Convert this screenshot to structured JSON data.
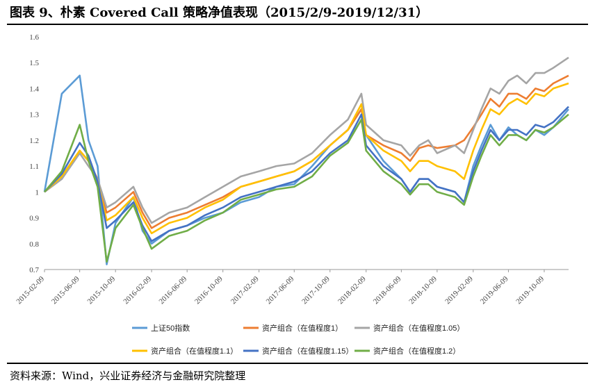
{
  "title": "图表 9、朴素 Covered Call 策略净值表现（2015/2/9-2019/12/31）",
  "source": "资料来源：Wind，兴业证券经济与金融研究院整理",
  "chart_data": {
    "type": "line",
    "ylim": [
      0.7,
      1.6
    ],
    "yticks": [
      "0.7",
      "0.8",
      "0.9",
      "1",
      "1.1",
      "1.2",
      "1.3",
      "1.4",
      "1.5",
      "1.6"
    ],
    "xticks": [
      "2015-02-09",
      "2015-06-09",
      "2015-10-09",
      "2016-02-09",
      "2016-06-09",
      "2016-10-09",
      "2017-02-09",
      "2017-06-09",
      "2017-10-09",
      "2018-02-09",
      "2018-06-09",
      "2018-10-09",
      "2019-02-09",
      "2019-06-09",
      "2019-10-09"
    ],
    "legend_position": "bottom",
    "grid": false,
    "x": [
      "2015-02-09",
      "2015-04-09",
      "2015-06-09",
      "2015-07-09",
      "2015-08-09",
      "2015-09-09",
      "2015-10-09",
      "2015-12-09",
      "2016-01-09",
      "2016-02-09",
      "2016-04-09",
      "2016-06-09",
      "2016-08-09",
      "2016-10-09",
      "2016-12-09",
      "2017-02-09",
      "2017-04-09",
      "2017-06-09",
      "2017-08-09",
      "2017-10-09",
      "2017-12-09",
      "2018-01-24",
      "2018-02-09",
      "2018-04-09",
      "2018-06-09",
      "2018-07-09",
      "2018-08-09",
      "2018-09-09",
      "2018-10-09",
      "2018-12-09",
      "2019-01-09",
      "2019-02-09",
      "2019-03-09",
      "2019-04-09",
      "2019-05-09",
      "2019-06-09",
      "2019-07-09",
      "2019-08-09",
      "2019-09-09",
      "2019-10-09",
      "2019-11-09",
      "2019-12-31"
    ],
    "series": [
      {
        "name": "上证50指数",
        "color": "#5b9bd5",
        "values": [
          1.0,
          1.38,
          1.45,
          1.2,
          1.1,
          0.72,
          0.88,
          0.98,
          0.85,
          0.8,
          0.85,
          0.87,
          0.9,
          0.92,
          0.96,
          0.98,
          1.02,
          1.03,
          1.1,
          1.18,
          1.24,
          1.32,
          1.22,
          1.12,
          1.05,
          1.0,
          1.05,
          1.05,
          1.02,
          1.0,
          0.96,
          1.1,
          1.18,
          1.26,
          1.2,
          1.25,
          1.22,
          1.2,
          1.24,
          1.22,
          1.25,
          1.32
        ]
      },
      {
        "name": "资产组合（在值程度1）",
        "color": "#ed7d31",
        "values": [
          1.0,
          1.06,
          1.16,
          1.12,
          1.05,
          0.92,
          0.94,
          1.0,
          0.92,
          0.86,
          0.9,
          0.92,
          0.95,
          0.98,
          1.02,
          1.04,
          1.06,
          1.08,
          1.12,
          1.18,
          1.24,
          1.32,
          1.22,
          1.18,
          1.15,
          1.12,
          1.17,
          1.18,
          1.17,
          1.18,
          1.2,
          1.25,
          1.3,
          1.36,
          1.33,
          1.38,
          1.38,
          1.36,
          1.4,
          1.39,
          1.42,
          1.45
        ]
      },
      {
        "name": "资产组合（在值程度1.05）",
        "color": "#a5a5a5",
        "values": [
          1.0,
          1.05,
          1.15,
          1.1,
          1.05,
          0.94,
          0.96,
          1.02,
          0.94,
          0.88,
          0.92,
          0.94,
          0.98,
          1.02,
          1.06,
          1.08,
          1.1,
          1.11,
          1.15,
          1.22,
          1.28,
          1.38,
          1.26,
          1.2,
          1.18,
          1.14,
          1.18,
          1.2,
          1.15,
          1.18,
          1.15,
          1.24,
          1.32,
          1.4,
          1.38,
          1.43,
          1.45,
          1.42,
          1.46,
          1.46,
          1.48,
          1.52
        ]
      },
      {
        "name": "资产组合（在值程度1.1）",
        "color": "#ffc000",
        "values": [
          1.0,
          1.06,
          1.16,
          1.12,
          1.04,
          0.89,
          0.91,
          0.98,
          0.9,
          0.84,
          0.88,
          0.9,
          0.94,
          0.97,
          1.02,
          1.04,
          1.06,
          1.08,
          1.12,
          1.18,
          1.24,
          1.34,
          1.22,
          1.16,
          1.12,
          1.08,
          1.12,
          1.12,
          1.1,
          1.08,
          1.05,
          1.16,
          1.24,
          1.32,
          1.3,
          1.34,
          1.36,
          1.34,
          1.38,
          1.37,
          1.4,
          1.42
        ]
      },
      {
        "name": "资产组合（在值程度1.15）",
        "color": "#4472c4",
        "values": [
          1.0,
          1.07,
          1.19,
          1.14,
          1.04,
          0.86,
          0.89,
          0.96,
          0.87,
          0.81,
          0.85,
          0.87,
          0.91,
          0.94,
          0.98,
          1.0,
          1.02,
          1.04,
          1.08,
          1.15,
          1.2,
          1.3,
          1.18,
          1.1,
          1.05,
          1.0,
          1.05,
          1.05,
          1.02,
          1.0,
          0.96,
          1.08,
          1.16,
          1.24,
          1.2,
          1.24,
          1.24,
          1.22,
          1.26,
          1.25,
          1.27,
          1.33
        ]
      },
      {
        "name": "资产组合（在值程度1.2）",
        "color": "#70ad47",
        "values": [
          1.0,
          1.08,
          1.26,
          1.12,
          1.02,
          0.73,
          0.86,
          0.95,
          0.86,
          0.78,
          0.83,
          0.85,
          0.89,
          0.92,
          0.97,
          0.99,
          1.01,
          1.02,
          1.06,
          1.14,
          1.19,
          1.28,
          1.16,
          1.08,
          1.03,
          0.99,
          1.03,
          1.03,
          1.0,
          0.98,
          0.95,
          1.06,
          1.14,
          1.22,
          1.18,
          1.22,
          1.22,
          1.2,
          1.24,
          1.23,
          1.25,
          1.3
        ]
      }
    ]
  }
}
